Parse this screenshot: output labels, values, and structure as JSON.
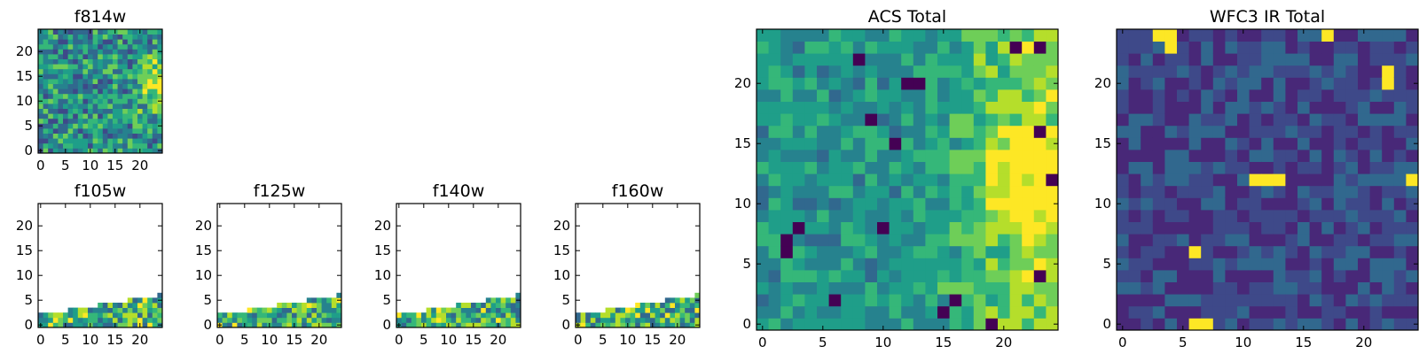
{
  "chart_data": {
    "type": "heatmap",
    "colormap": "viridis",
    "grid": false,
    "panels": [
      {
        "id": "f814w",
        "title": "f814w",
        "xlim": [
          0,
          24
        ],
        "ylim": [
          0,
          24
        ],
        "xticks": [
          0,
          5,
          10,
          15,
          20
        ],
        "yticks": [
          0,
          5,
          10,
          15,
          20
        ],
        "coverage": "full",
        "brightest_region": "right edge, y 8-18"
      },
      {
        "id": "f105w",
        "title": "f105w",
        "xlim": [
          0,
          24
        ],
        "ylim": [
          0,
          24
        ],
        "xticks": [
          0,
          5,
          10,
          15,
          20
        ],
        "yticks": [
          0,
          5,
          10,
          15,
          20
        ],
        "coverage": "bottom strip, filled rows rising from 3 at x=0 to 7 at x=24"
      },
      {
        "id": "f125w",
        "title": "f125w",
        "xlim": [
          0,
          24
        ],
        "ylim": [
          0,
          24
        ],
        "xticks": [
          0,
          5,
          10,
          15,
          20
        ],
        "yticks": [
          0,
          5,
          10,
          15,
          20
        ],
        "coverage": "bottom strip, filled rows rising from 3 at x=0 to 7 at x=24"
      },
      {
        "id": "f140w",
        "title": "f140w",
        "xlim": [
          0,
          24
        ],
        "ylim": [
          0,
          24
        ],
        "xticks": [
          0,
          5,
          10,
          15,
          20
        ],
        "yticks": [
          0,
          5,
          10,
          15,
          20
        ],
        "coverage": "bottom strip, filled rows rising from 3 at x=0 to 7 at x=24"
      },
      {
        "id": "f160w",
        "title": "f160w",
        "xlim": [
          0,
          24
        ],
        "ylim": [
          0,
          24
        ],
        "xticks": [
          0,
          5,
          10,
          15,
          20
        ],
        "yticks": [
          0,
          5,
          10,
          15,
          20
        ],
        "coverage": "bottom strip, filled rows rising from 3 at x=0 to 7 at x=24"
      },
      {
        "id": "acs",
        "title": "ACS Total",
        "xlim": [
          0,
          24
        ],
        "ylim": [
          0,
          24
        ],
        "xticks": [
          0,
          5,
          10,
          15,
          20
        ],
        "yticks": [
          0,
          5,
          10,
          15,
          20
        ],
        "coverage": "full",
        "brightest_region": "right edge, y 8-16"
      },
      {
        "id": "wfc3",
        "title": "WFC3 IR Total",
        "xlim": [
          0,
          24
        ],
        "ylim": [
          0,
          24
        ],
        "xticks": [
          0,
          5,
          10,
          15,
          20
        ],
        "yticks": [
          0,
          5,
          10,
          15,
          20
        ],
        "coverage": "full",
        "bright_spots": [
          [
            3,
            24
          ],
          [
            4,
            24
          ],
          [
            4,
            23
          ],
          [
            16,
            24
          ],
          [
            17,
            24
          ],
          [
            22,
            21
          ],
          [
            22,
            20
          ],
          [
            11,
            12
          ],
          [
            12,
            12
          ],
          [
            12,
            11
          ],
          [
            13,
            12
          ],
          [
            24,
            12
          ],
          [
            5,
            7
          ],
          [
            6,
            6
          ],
          [
            6,
            0
          ],
          [
            7,
            0
          ]
        ]
      }
    ]
  }
}
